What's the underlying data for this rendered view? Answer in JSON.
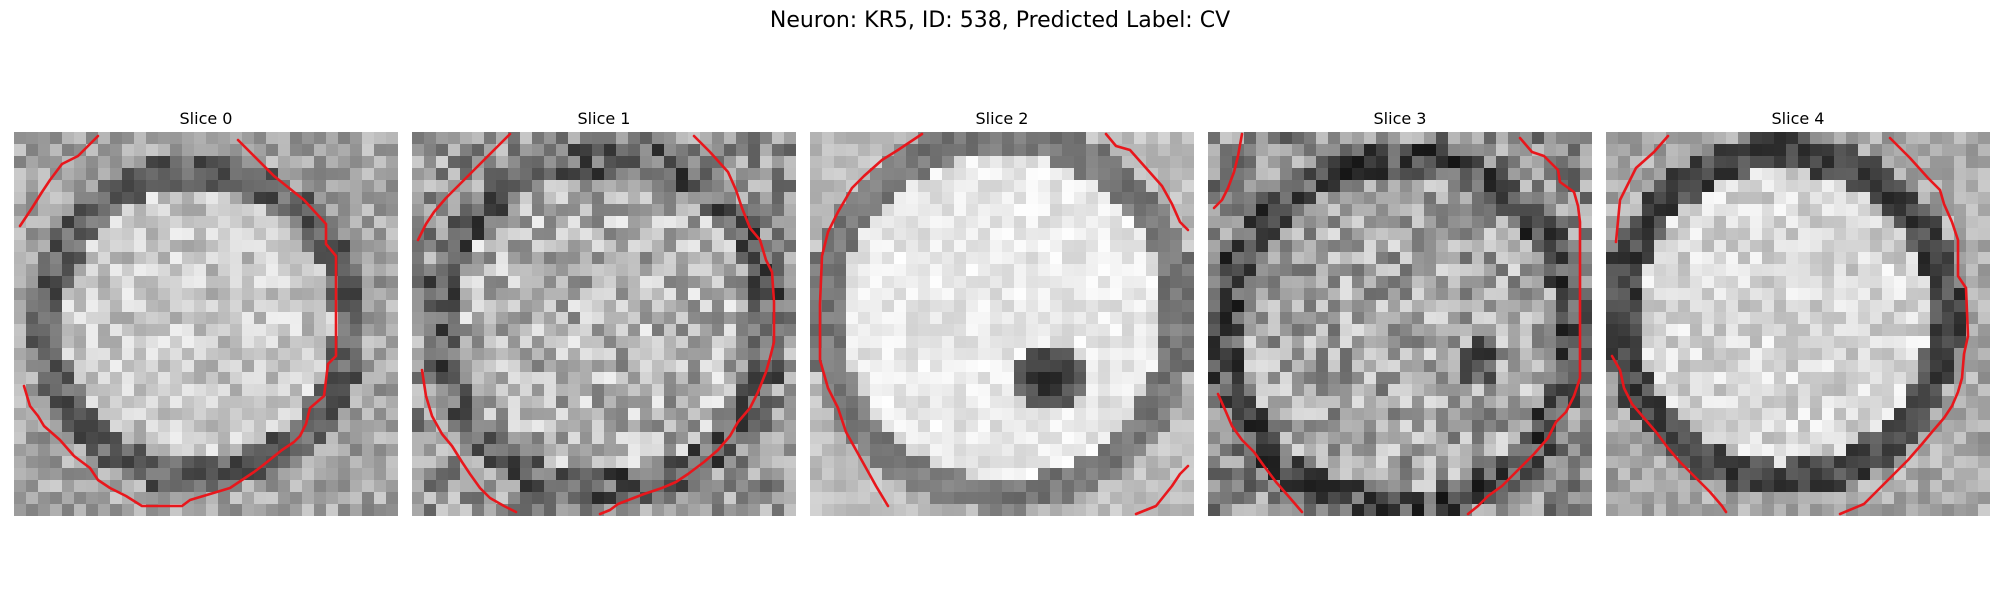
{
  "figure": {
    "title": "Neuron: KR5, ID: 538, Predicted Label: CV"
  },
  "slices": [
    {
      "title": "Slice 0"
    },
    {
      "title": "Slice 1"
    },
    {
      "title": "Slice 2"
    },
    {
      "title": "Slice 3"
    },
    {
      "title": "Slice 4"
    }
  ]
}
